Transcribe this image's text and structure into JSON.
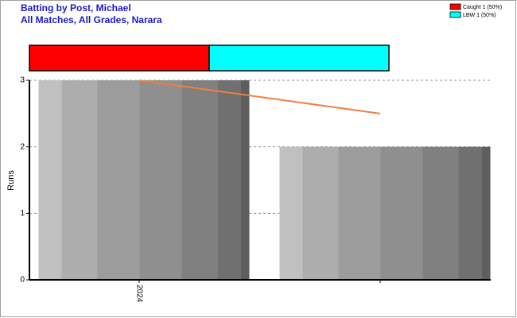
{
  "chart_data": {
    "type": "bar",
    "title": "Batting by Post, Michael",
    "subtitle": "All Matches, All Grades, Narara",
    "ylabel": "Runs",
    "categories": [
      "2024",
      null
    ],
    "values": [
      3,
      2
    ],
    "line_values": [
      3,
      2.5
    ],
    "line_color": "#f08040",
    "ylim": [
      0,
      3
    ],
    "yticks": [
      0,
      1,
      2,
      3
    ],
    "grid": true,
    "dismissals": [
      {
        "label": "Caught 1 (50%)",
        "value": 1,
        "color": "#ff0000"
      },
      {
        "label": "LBW 1 (50%)",
        "value": 1,
        "color": "#00ffff"
      }
    ],
    "legend": "top-right"
  }
}
